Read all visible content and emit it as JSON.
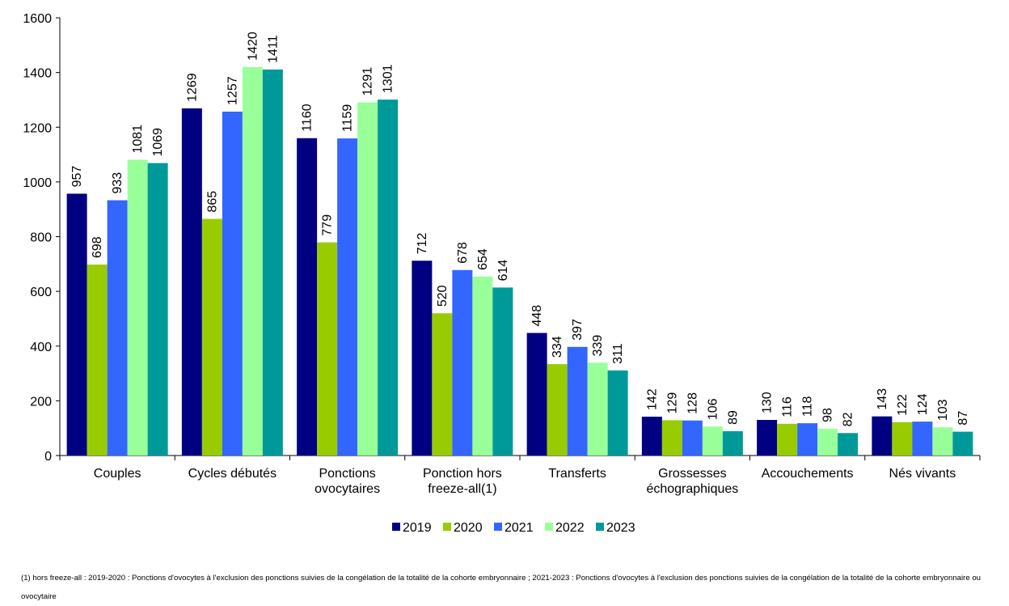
{
  "chart_data": {
    "type": "bar",
    "categories": [
      "Couples",
      "Cycles débutés",
      "Ponctions ovocytaires",
      "Ponction hors freeze-all(1)",
      "Transferts",
      "Grossesses échographiques",
      "Accouchements",
      "Nés vivants"
    ],
    "series": [
      {
        "name": "2019",
        "color": "#000080",
        "values": [
          957,
          1269,
          1160,
          712,
          448,
          142,
          130,
          143
        ]
      },
      {
        "name": "2020",
        "color": "#99cc00",
        "values": [
          698,
          865,
          779,
          520,
          334,
          129,
          116,
          122
        ]
      },
      {
        "name": "2021",
        "color": "#3366ff",
        "values": [
          933,
          1257,
          1159,
          678,
          397,
          128,
          118,
          124
        ]
      },
      {
        "name": "2022",
        "color": "#99ff99",
        "values": [
          1081,
          1420,
          1291,
          654,
          339,
          106,
          98,
          103
        ]
      },
      {
        "name": "2023",
        "color": "#009999",
        "values": [
          1069,
          1411,
          1301,
          614,
          311,
          89,
          82,
          87
        ]
      }
    ],
    "ylim": [
      0,
      1600
    ],
    "yticks": [
      0,
      200,
      400,
      600,
      800,
      1000,
      1200,
      1400,
      1600
    ],
    "grid": false,
    "legend": "bottom",
    "footnote": "(1) hors freeze-all : 2019-2020 : Ponctions d'ovocytes à l'exclusion des ponctions suivies de la congélation de la totalité de la cohorte embryonnaire ; 2021-2023 : Ponctions d'ovocytes à l'exclusion des ponctions suivies de la congélation de la totalité de la cohorte embryonnaire ou ovocytaire"
  }
}
